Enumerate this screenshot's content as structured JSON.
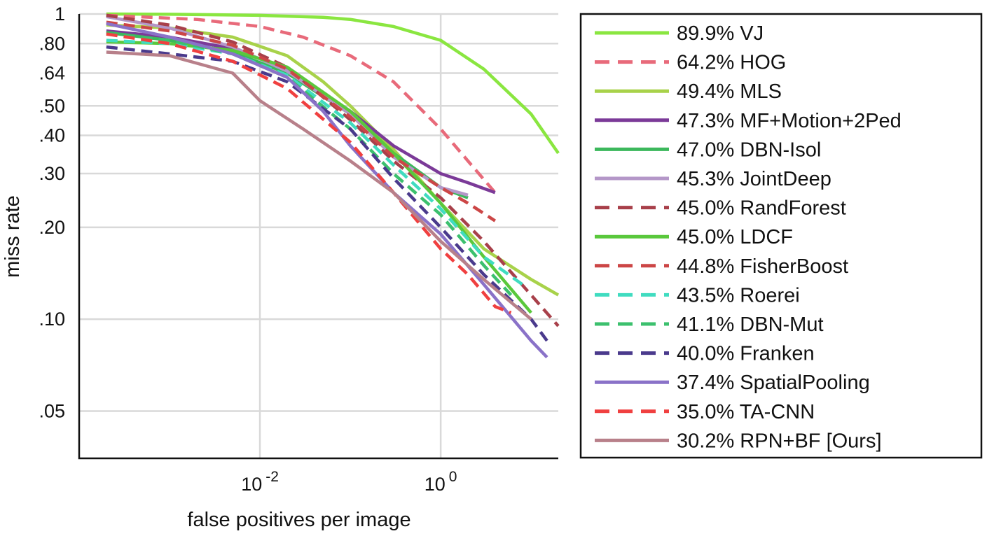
{
  "chart_data": {
    "type": "line",
    "xlabel": "false positives per image",
    "ylabel": "miss rate",
    "x_scale": "log",
    "y_scale": "log",
    "xlim": [
      0.0001,
      20
    ],
    "ylim": [
      0.035,
      1
    ],
    "x_ticks": [
      {
        "value": 0.01,
        "base": "10",
        "exp": "-2"
      },
      {
        "value": 1,
        "base": "10",
        "exp": "0"
      }
    ],
    "y_ticks": [
      {
        "value": 1,
        "label": "1"
      },
      {
        "value": 0.8,
        "label": ".80"
      },
      {
        "value": 0.64,
        "label": ".64"
      },
      {
        "value": 0.5,
        "label": ".50"
      },
      {
        "value": 0.4,
        "label": ".40"
      },
      {
        "value": 0.3,
        "label": ".30"
      },
      {
        "value": 0.2,
        "label": ".20"
      },
      {
        "value": 0.1,
        "label": ".10"
      },
      {
        "value": 0.05,
        "label": ".05"
      }
    ],
    "grid": true,
    "legend_position": "right",
    "series": [
      {
        "name": "89.9% VJ",
        "color": "#8ae640",
        "dash": "solid",
        "x": [
          0.0002,
          0.001,
          0.01,
          0.05,
          0.1,
          0.3,
          1,
          3,
          10,
          20
        ],
        "y": [
          1.0,
          0.998,
          0.99,
          0.975,
          0.96,
          0.91,
          0.82,
          0.66,
          0.47,
          0.35
        ]
      },
      {
        "name": "64.2% HOG",
        "color": "#e86a7a",
        "dash": "dashed",
        "x": [
          0.0002,
          0.002,
          0.01,
          0.03,
          0.1,
          0.3,
          1,
          2,
          4
        ],
        "y": [
          0.99,
          0.96,
          0.91,
          0.84,
          0.73,
          0.6,
          0.42,
          0.33,
          0.26
        ]
      },
      {
        "name": "49.4% MLS",
        "color": "#a8d24a",
        "dash": "solid",
        "x": [
          0.0002,
          0.001,
          0.005,
          0.02,
          0.05,
          0.1,
          0.3,
          1,
          3,
          10,
          20
        ],
        "y": [
          0.92,
          0.9,
          0.84,
          0.73,
          0.6,
          0.5,
          0.36,
          0.24,
          0.17,
          0.135,
          0.12
        ]
      },
      {
        "name": "47.3% MF+Motion+2Ped",
        "color": "#7b3a98",
        "dash": "solid",
        "x": [
          0.0002,
          0.001,
          0.005,
          0.02,
          0.1,
          0.3,
          1,
          2,
          4
        ],
        "y": [
          0.88,
          0.84,
          0.77,
          0.66,
          0.48,
          0.37,
          0.3,
          0.28,
          0.26
        ]
      },
      {
        "name": "47.0% DBN-Isol",
        "color": "#3cb85c",
        "dash": "solid",
        "x": [
          0.0002,
          0.001,
          0.005,
          0.02,
          0.1,
          0.3,
          1,
          2
        ],
        "y": [
          0.87,
          0.82,
          0.75,
          0.64,
          0.47,
          0.35,
          0.27,
          0.25
        ]
      },
      {
        "name": "45.3% JointDeep",
        "color": "#b497c8",
        "dash": "solid",
        "x": [
          0.0002,
          0.001,
          0.005,
          0.02,
          0.1,
          0.3,
          1,
          2
        ],
        "y": [
          0.98,
          0.9,
          0.78,
          0.65,
          0.47,
          0.34,
          0.27,
          0.255
        ]
      },
      {
        "name": "45.0% RandForest",
        "color": "#a8404a",
        "dash": "dashed",
        "x": [
          0.0002,
          0.001,
          0.005,
          0.02,
          0.1,
          0.3,
          1,
          3,
          10,
          20
        ],
        "y": [
          0.99,
          0.92,
          0.81,
          0.67,
          0.45,
          0.33,
          0.25,
          0.18,
          0.12,
          0.095
        ]
      },
      {
        "name": "45.0% LDCF",
        "color": "#5ac83c",
        "dash": "solid",
        "x": [
          0.0002,
          0.001,
          0.005,
          0.02,
          0.1,
          0.3,
          1,
          3,
          10
        ],
        "y": [
          0.81,
          0.8,
          0.76,
          0.67,
          0.48,
          0.35,
          0.24,
          0.16,
          0.105
        ]
      },
      {
        "name": "44.8% FisherBoost",
        "color": "#cc4646",
        "dash": "dashed",
        "x": [
          0.0002,
          0.001,
          0.005,
          0.02,
          0.1,
          0.3,
          1,
          2,
          4
        ],
        "y": [
          0.94,
          0.88,
          0.79,
          0.66,
          0.46,
          0.34,
          0.27,
          0.24,
          0.21
        ]
      },
      {
        "name": "43.5% Roerei",
        "color": "#40dcc0",
        "dash": "dashed",
        "x": [
          0.0002,
          0.001,
          0.005,
          0.02,
          0.1,
          0.3,
          1,
          3,
          8
        ],
        "y": [
          0.82,
          0.8,
          0.74,
          0.63,
          0.44,
          0.32,
          0.23,
          0.16,
          0.13
        ]
      },
      {
        "name": "41.1% DBN-Mut",
        "color": "#3cc06e",
        "dash": "dashed",
        "x": [
          0.0002,
          0.001,
          0.005,
          0.02,
          0.1,
          0.3,
          1,
          3,
          6
        ],
        "y": [
          0.86,
          0.82,
          0.74,
          0.62,
          0.42,
          0.3,
          0.22,
          0.15,
          0.12
        ]
      },
      {
        "name": "40.0% Franken",
        "color": "#4a3a8c",
        "dash": "dashed",
        "x": [
          0.0002,
          0.001,
          0.005,
          0.02,
          0.1,
          0.3,
          1,
          3,
          10,
          15
        ],
        "y": [
          0.78,
          0.74,
          0.7,
          0.6,
          0.42,
          0.29,
          0.2,
          0.14,
          0.1,
          0.085
        ]
      },
      {
        "name": "37.4% SpatialPooling",
        "color": "#8a72c8",
        "dash": "solid",
        "x": [
          0.0002,
          0.001,
          0.005,
          0.02,
          0.05,
          0.1,
          0.3,
          1,
          3,
          10,
          15
        ],
        "y": [
          0.93,
          0.84,
          0.74,
          0.62,
          0.48,
          0.37,
          0.26,
          0.19,
          0.13,
          0.085,
          0.075
        ]
      },
      {
        "name": "35.0% TA-CNN",
        "color": "#f04040",
        "dash": "dashed",
        "x": [
          0.0002,
          0.001,
          0.005,
          0.02,
          0.1,
          0.3,
          1,
          2,
          4,
          6
        ],
        "y": [
          0.86,
          0.8,
          0.7,
          0.57,
          0.38,
          0.26,
          0.17,
          0.14,
          0.11,
          0.105
        ]
      },
      {
        "name": "30.2% RPN+BF [Ours]",
        "color": "#b8808a",
        "dash": "solid",
        "x": [
          0.0002,
          0.001,
          0.005,
          0.01,
          0.03,
          0.1,
          0.3,
          1,
          3,
          10
        ],
        "y": [
          0.75,
          0.73,
          0.64,
          0.52,
          0.42,
          0.33,
          0.26,
          0.18,
          0.135,
          0.1
        ]
      }
    ]
  }
}
